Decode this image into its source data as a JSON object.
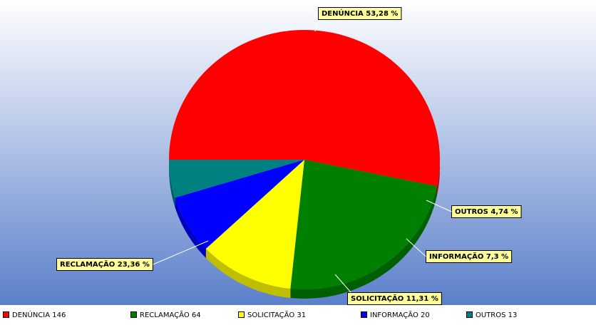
{
  "chart_data": {
    "type": "pie",
    "categories": [
      "DENÚNCIA",
      "RECLAMAÇÃO",
      "SOLICITAÇÃO",
      "INFORMAÇÃO",
      "OUTROS"
    ],
    "values": [
      53.28,
      23.36,
      11.31,
      7.3,
      4.74
    ],
    "value_labels": [
      "53,28 %",
      "23,36 %",
      "11,31 %",
      "7,3 %",
      "4,74 %"
    ],
    "counts": [
      146,
      64,
      31,
      20,
      13
    ],
    "colors": [
      "#ff0000",
      "#007f00",
      "#ffff00",
      "#0000ff",
      "#008080"
    ]
  }
}
